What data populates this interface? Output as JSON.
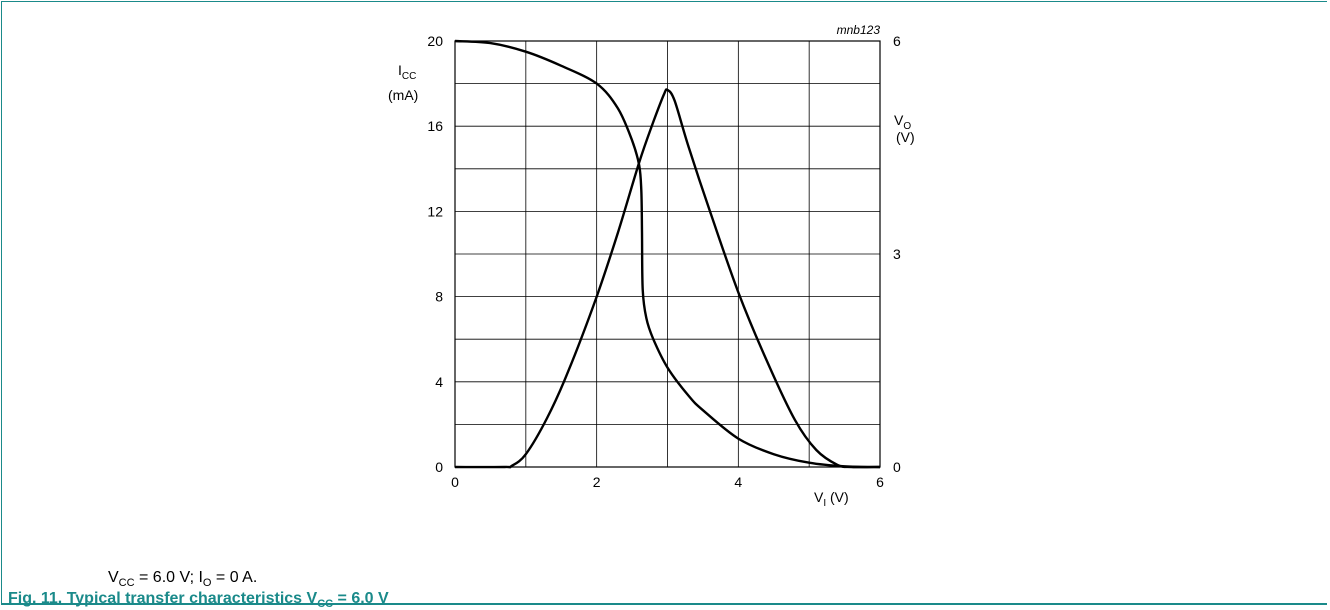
{
  "figure": {
    "code": "mnb123",
    "note": {
      "v": "V",
      "v_sub": "CC",
      "mid": " = 6.0 V; I",
      "i_sub": "O",
      "tail": " = 0 A."
    },
    "caption": {
      "prefix": "Fig. 11.  Typical transfer characteristics V",
      "sub": "CC",
      "suffix": " = 6.0 V"
    }
  },
  "chart_data": {
    "type": "line",
    "title": "Typical transfer characteristics VCC = 6.0 V",
    "xlabel": {
      "main": "V",
      "sub": "I",
      "unit": " (V)"
    },
    "ylabel_left": {
      "main": "I",
      "sub": "CC",
      "unit": "(mA)"
    },
    "ylabel_right": {
      "main": "V",
      "sub": "O",
      "unit": "(V)"
    },
    "xlim": [
      0,
      6
    ],
    "ylim_left": [
      0,
      20
    ],
    "ylim_right": [
      0,
      6
    ],
    "x_ticks": [
      "0",
      "2",
      "4",
      "6"
    ],
    "y_left_ticks": [
      "0",
      "4",
      "8",
      "12",
      "16",
      "20"
    ],
    "y_right_ticks": [
      "0",
      "3",
      "6"
    ],
    "grid": true,
    "series": [
      {
        "axis": "right",
        "points": [
          [
            0,
            6.0
          ],
          [
            0.5,
            5.97
          ],
          [
            1.0,
            5.85
          ],
          [
            1.5,
            5.65
          ],
          [
            2.0,
            5.4
          ],
          [
            2.3,
            5.05
          ],
          [
            2.5,
            4.6
          ],
          [
            2.6,
            4.25
          ],
          [
            2.63,
            3.9
          ],
          [
            2.64,
            3.3
          ],
          [
            2.65,
            2.5
          ],
          [
            2.7,
            2.1
          ],
          [
            2.8,
            1.8
          ],
          [
            3.0,
            1.4
          ],
          [
            3.3,
            1.0
          ],
          [
            3.5,
            0.8
          ],
          [
            4.0,
            0.4
          ],
          [
            4.5,
            0.18
          ],
          [
            5.0,
            0.06
          ],
          [
            5.5,
            0.01
          ],
          [
            6.0,
            0.0
          ]
        ]
      },
      {
        "axis": "left",
        "points": [
          [
            0,
            0
          ],
          [
            0.7,
            0
          ],
          [
            0.8,
            0.05
          ],
          [
            1.0,
            0.6
          ],
          [
            1.3,
            2.3
          ],
          [
            1.6,
            4.5
          ],
          [
            2.0,
            8.0
          ],
          [
            2.3,
            11.0
          ],
          [
            2.6,
            14.3
          ],
          [
            2.8,
            16.2
          ],
          [
            2.95,
            17.5
          ],
          [
            3.0,
            17.7
          ],
          [
            3.1,
            17.2
          ],
          [
            3.3,
            15.0
          ],
          [
            3.6,
            12.0
          ],
          [
            4.0,
            8.2
          ],
          [
            4.4,
            5.0
          ],
          [
            4.8,
            2.2
          ],
          [
            5.1,
            0.8
          ],
          [
            5.4,
            0.1
          ],
          [
            5.6,
            0
          ],
          [
            6.0,
            0
          ]
        ]
      }
    ]
  }
}
